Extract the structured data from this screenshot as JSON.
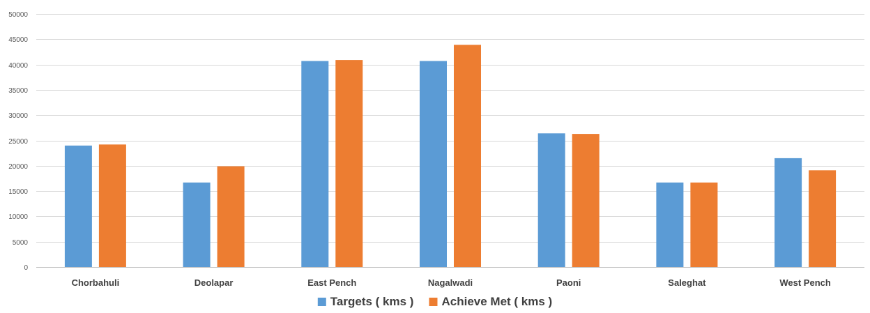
{
  "chart_data": {
    "type": "bar",
    "categories": [
      "Chorbahuli",
      "Deolapar",
      "East Pench",
      "Nagalwadi",
      "Paoni",
      "Saleghat",
      "West Pench"
    ],
    "series": [
      {
        "name": "Targets ( kms )",
        "values": [
          24000,
          16700,
          40700,
          40700,
          26400,
          16700,
          21500
        ],
        "color": "#5b9bd5"
      },
      {
        "name": "Achieve Met ( kms )",
        "values": [
          24200,
          19900,
          40900,
          43900,
          26300,
          16700,
          19100
        ],
        "color": "#ed7d31"
      }
    ],
    "ylim": [
      0,
      50000
    ],
    "yticks": [
      0,
      5000,
      10000,
      15000,
      20000,
      25000,
      30000,
      35000,
      40000,
      45000,
      50000
    ],
    "grid": true,
    "legend_position": "bottom-center"
  }
}
